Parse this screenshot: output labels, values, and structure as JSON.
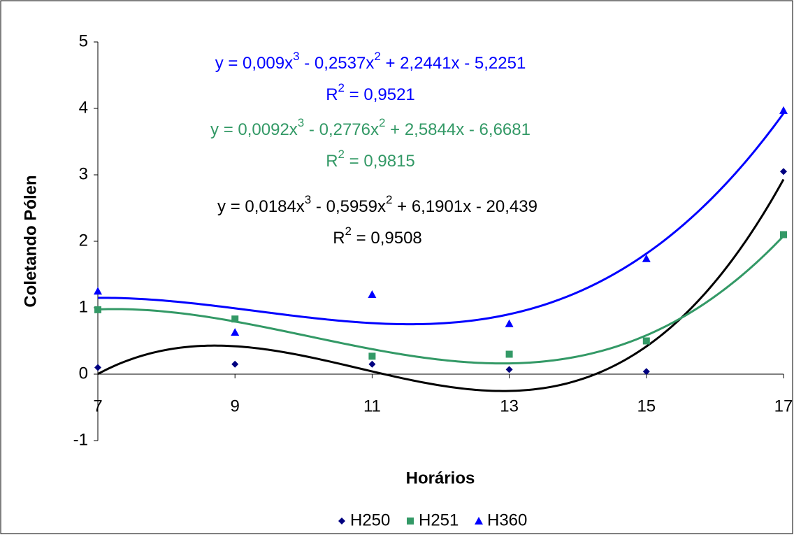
{
  "chart_data": {
    "type": "scatter",
    "x_label": "Horários",
    "y_label": "Coletando Pólen",
    "x": [
      7,
      9,
      11,
      13,
      15,
      17
    ],
    "xlim": [
      7,
      17
    ],
    "xticks": [
      7,
      9,
      11,
      13,
      15,
      17
    ],
    "ylim": [
      -1,
      5
    ],
    "yticks": [
      -1,
      0,
      1,
      2,
      3,
      4,
      5
    ],
    "trendline_order": 3,
    "legend": "bottom",
    "series": [
      {
        "name": "H250",
        "color": "#000080",
        "marker": "diamond",
        "trendline_color": "#000000",
        "values": [
          0.1,
          0.15,
          0.15,
          0.07,
          0.04,
          3.05
        ],
        "equation": [
          "y = 0,0184x",
          "3",
          " - 0,5959x",
          "2",
          " + 6,1901x - 20,439"
        ],
        "r2": [
          "R",
          "2",
          " = 0,9508"
        ],
        "equation_color": "#000000"
      },
      {
        "name": "H251",
        "color": "#339966",
        "marker": "square",
        "trendline_color": "#339966",
        "values": [
          0.97,
          0.83,
          0.27,
          0.3,
          0.5,
          2.1
        ],
        "equation": [
          "y = 0,0092x",
          "3",
          " - 0,2776x",
          "2",
          " + 2,5844x - 6,6681"
        ],
        "r2": [
          "R",
          "2",
          " = 0,9815"
        ],
        "equation_color": "#339966"
      },
      {
        "name": "H360",
        "color": "#0000ff",
        "marker": "triangle",
        "trendline_color": "#0000ff",
        "values": [
          1.25,
          0.63,
          1.2,
          0.76,
          1.74,
          3.97
        ],
        "equation": [
          "y = 0,009x",
          "3",
          " - 0,2537x",
          "2",
          " + 2,2441x - 5,2251"
        ],
        "r2": [
          "R",
          "2",
          " = 0,9521"
        ],
        "equation_color": "#0000ff"
      }
    ]
  }
}
